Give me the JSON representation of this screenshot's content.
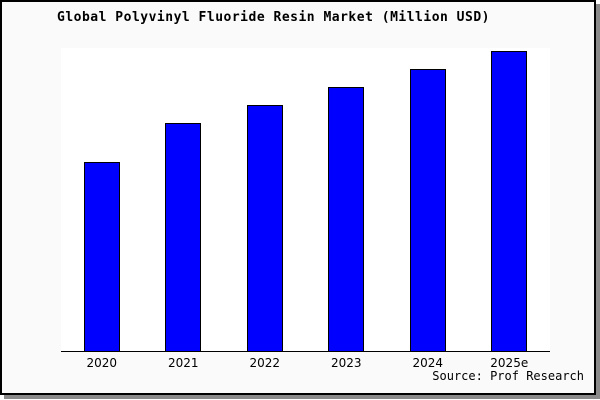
{
  "figure": {
    "title": "Global Polyvinyl Fluoride Resin Market (Million USD)",
    "source": "Source: Prof Research"
  },
  "chart_data": {
    "type": "bar",
    "title": "Global Polyvinyl Fluoride Resin Market (Million USD)",
    "categories": [
      "2020",
      "2021",
      "2022",
      "2023",
      "2024",
      "2025e"
    ],
    "values": [
      63,
      76,
      82,
      88,
      94,
      100
    ],
    "value_scale": "relative height, tallest bar (2025e) = 100; no numeric y-axis shown in chart",
    "xlabel": "",
    "ylabel": "",
    "ylim": [
      0,
      101
    ],
    "grid": false,
    "legend": false,
    "y_axis_visible": false,
    "bar_color": "#0000ff",
    "bar_border_color": "#000000",
    "plot_bg": "#ffffff",
    "fig_bg": "#fafafa",
    "source": "Source: Prof Research"
  }
}
